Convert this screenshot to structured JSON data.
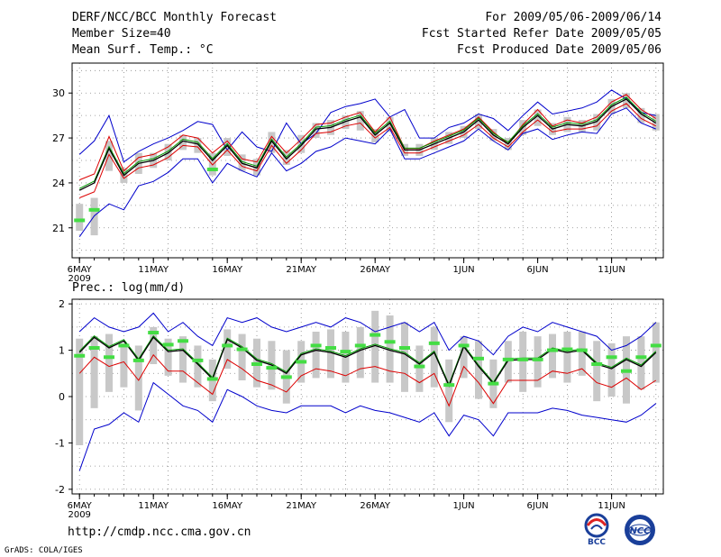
{
  "header": {
    "title": "DERF/NCC/BCC Monthly Forecast",
    "member_size": "Member Size=40",
    "variable": "Mean Surf. Temp.: °C",
    "valid_range": "For 2009/05/06-2009/06/14",
    "fcst_started": "Fcst Started Refer Date 2009/05/05",
    "fcst_produced": "Fcst Produced Date 2009/05/06"
  },
  "footer": {
    "url": "http://cmdp.ncc.cma.gov.cn",
    "grads": "GrADS: COLA/IGES",
    "logo1_text": "BCC",
    "logo2_text": "NCC"
  },
  "colors": {
    "envelope": "#0000cc",
    "spread": "#dd0000",
    "mean": "#000000",
    "median": "#009900",
    "box": "#c8c8c8",
    "marker": "#44dd44"
  },
  "chart_data": [
    {
      "type": "line",
      "title": "Mean Surf. Temp.: °C",
      "xlabel": "",
      "ylabel": "°C",
      "ylim": [
        19,
        32
      ],
      "yticks": [
        21,
        24,
        27,
        30
      ],
      "xtick_labels": [
        "6MAY",
        "11MAY",
        "16MAY",
        "21MAY",
        "26MAY",
        "1JUN",
        "6JUN",
        "11JUN"
      ],
      "xtick_positions": [
        0,
        5,
        10,
        15,
        20,
        26,
        31,
        36
      ],
      "year_label": "2009",
      "grid": true,
      "days": 40,
      "series": [
        {
          "name": "max",
          "values": [
            25.9,
            26.8,
            28.5,
            25.4,
            26.1,
            26.6,
            27.0,
            27.5,
            28.1,
            27.9,
            26.2,
            27.4,
            26.4,
            26.1,
            28.0,
            26.6,
            27.3,
            28.7,
            29.1,
            29.3,
            29.6,
            28.4,
            28.9,
            27.0,
            27.0,
            27.7,
            28.0,
            28.6,
            28.3,
            27.5,
            28.5,
            29.4,
            28.6,
            28.8,
            29.0,
            29.4,
            30.2,
            29.6,
            28.7,
            28.5
          ]
        },
        {
          "name": "upper",
          "values": [
            24.2,
            24.6,
            27.1,
            24.8,
            25.7,
            25.9,
            26.4,
            27.2,
            27.0,
            26.0,
            26.8,
            25.6,
            25.4,
            27.1,
            26.0,
            26.9,
            27.9,
            28.0,
            28.4,
            28.7,
            27.4,
            28.4,
            26.3,
            26.3,
            26.8,
            27.2,
            27.6,
            28.4,
            27.4,
            26.6,
            27.9,
            28.9,
            27.8,
            28.2,
            28.0,
            28.4,
            29.4,
            29.9,
            28.9,
            28.3
          ]
        },
        {
          "name": "mean",
          "values": [
            23.5,
            24.0,
            26.3,
            24.5,
            25.3,
            25.5,
            26.0,
            26.8,
            26.6,
            25.5,
            26.5,
            25.3,
            25.0,
            26.8,
            25.6,
            26.5,
            27.6,
            27.7,
            28.1,
            28.4,
            27.2,
            28.0,
            26.2,
            26.2,
            26.6,
            27.0,
            27.4,
            28.2,
            27.2,
            26.6,
            27.7,
            28.5,
            27.6,
            27.9,
            27.8,
            28.1,
            29.1,
            29.6,
            28.6,
            28.0
          ]
        },
        {
          "name": "lower",
          "values": [
            23.0,
            23.4,
            25.9,
            24.3,
            25.0,
            25.2,
            25.7,
            26.5,
            26.4,
            25.2,
            26.2,
            25.1,
            24.8,
            26.5,
            25.3,
            26.2,
            27.3,
            27.4,
            27.8,
            28.0,
            27.0,
            27.7,
            26.0,
            26.0,
            26.4,
            26.8,
            27.2,
            27.9,
            27.0,
            26.4,
            27.4,
            28.2,
            27.4,
            27.6,
            27.6,
            27.8,
            28.8,
            29.3,
            28.3,
            27.8
          ]
        },
        {
          "name": "min",
          "values": [
            20.4,
            21.8,
            22.6,
            22.2,
            23.8,
            24.1,
            24.7,
            25.6,
            25.6,
            24.0,
            25.3,
            24.8,
            24.4,
            26.0,
            24.8,
            25.3,
            26.1,
            26.4,
            27.0,
            26.8,
            26.6,
            27.6,
            25.6,
            25.6,
            26.0,
            26.4,
            26.8,
            27.6,
            26.8,
            26.2,
            27.3,
            27.6,
            26.9,
            27.2,
            27.4,
            27.3,
            28.6,
            29.0,
            28.0,
            27.6
          ]
        },
        {
          "name": "marker",
          "values": [
            21.5,
            22.2,
            null,
            null,
            null,
            null,
            null,
            null,
            null,
            24.9,
            null,
            null,
            null,
            null,
            null,
            null,
            null,
            null,
            null,
            null,
            null,
            null,
            null,
            null,
            null,
            null,
            null,
            null,
            null,
            null,
            null,
            null,
            null,
            null,
            null,
            null,
            null,
            null,
            null,
            null
          ]
        },
        {
          "name": "box_low",
          "values": [
            20.8,
            20.5,
            24.8,
            24.0,
            24.6,
            25.0,
            25.5,
            26.2,
            26.0,
            24.5,
            25.8,
            24.8,
            24.5,
            26.0,
            25.2,
            26.0,
            27.0,
            27.2,
            27.6,
            27.5,
            26.7,
            27.4,
            25.8,
            25.8,
            26.2,
            26.6,
            27.0,
            27.6,
            26.8,
            26.2,
            27.2,
            27.8,
            27.2,
            27.4,
            27.4,
            27.5,
            28.6,
            29.0,
            28.0,
            27.5
          ]
        },
        {
          "name": "box_high",
          "values": [
            22.6,
            23.0,
            26.8,
            25.0,
            26.0,
            26.0,
            26.6,
            27.2,
            27.0,
            26.0,
            27.0,
            25.9,
            25.6,
            27.4,
            26.2,
            27.2,
            28.0,
            28.2,
            28.5,
            28.8,
            27.6,
            28.4,
            26.6,
            26.6,
            27.0,
            27.4,
            27.8,
            28.6,
            27.6,
            27.0,
            28.2,
            28.9,
            28.0,
            28.4,
            28.2,
            28.6,
            29.6,
            30.0,
            29.0,
            28.6
          ]
        }
      ]
    },
    {
      "type": "line",
      "title": "Prec.: log(mm/d)",
      "xlabel": "",
      "ylabel": "log(mm/d)",
      "ylim": [
        -2.1,
        2.1
      ],
      "yticks": [
        -2,
        -1,
        0,
        1,
        2
      ],
      "xtick_labels": [
        "6MAY",
        "11MAY",
        "16MAY",
        "21MAY",
        "26MAY",
        "1JUN",
        "6JUN",
        "11JUN"
      ],
      "xtick_positions": [
        0,
        5,
        10,
        15,
        20,
        26,
        31,
        36
      ],
      "year_label": "2009",
      "grid": true,
      "days": 40,
      "series": [
        {
          "name": "max",
          "values": [
            1.4,
            1.7,
            1.5,
            1.4,
            1.5,
            1.8,
            1.4,
            1.6,
            1.3,
            1.1,
            1.7,
            1.6,
            1.7,
            1.5,
            1.4,
            1.5,
            1.6,
            1.5,
            1.7,
            1.6,
            1.4,
            1.5,
            1.6,
            1.4,
            1.6,
            1.0,
            1.3,
            1.2,
            0.9,
            1.3,
            1.5,
            1.4,
            1.6,
            1.5,
            1.4,
            1.3,
            1.0,
            1.1,
            1.3,
            1.6
          ]
        },
        {
          "name": "mean",
          "values": [
            0.95,
            1.28,
            1.05,
            1.2,
            0.78,
            1.28,
            0.97,
            1.0,
            0.7,
            0.38,
            1.23,
            1.05,
            0.78,
            0.68,
            0.5,
            0.9,
            1.0,
            0.95,
            0.85,
            1.0,
            1.1,
            1.0,
            0.92,
            0.7,
            0.95,
            0.23,
            1.08,
            0.65,
            0.28,
            0.78,
            0.8,
            0.8,
            1.02,
            0.95,
            1.0,
            0.7,
            0.6,
            0.8,
            0.65,
            0.95
          ]
        },
        {
          "name": "lower",
          "values": [
            0.5,
            0.85,
            0.65,
            0.75,
            0.35,
            0.9,
            0.55,
            0.55,
            0.3,
            0.05,
            0.8,
            0.6,
            0.35,
            0.25,
            0.1,
            0.45,
            0.6,
            0.55,
            0.45,
            0.6,
            0.65,
            0.55,
            0.5,
            0.3,
            0.5,
            -0.2,
            0.65,
            0.3,
            -0.15,
            0.35,
            0.35,
            0.35,
            0.55,
            0.5,
            0.6,
            0.3,
            0.2,
            0.4,
            0.15,
            0.35
          ]
        },
        {
          "name": "min",
          "values": [
            -1.6,
            -0.7,
            -0.6,
            -0.35,
            -0.55,
            0.3,
            0.05,
            -0.2,
            -0.3,
            -0.55,
            0.15,
            0.0,
            -0.2,
            -0.3,
            -0.35,
            -0.2,
            -0.2,
            -0.2,
            -0.35,
            -0.2,
            -0.3,
            -0.35,
            -0.45,
            -0.55,
            -0.35,
            -0.85,
            -0.4,
            -0.5,
            -0.85,
            -0.35,
            -0.35,
            -0.35,
            -0.25,
            -0.3,
            -0.4,
            -0.45,
            -0.5,
            -0.55,
            -0.4,
            -0.15
          ]
        },
        {
          "name": "marker",
          "values": [
            0.88,
            1.05,
            0.85,
            1.1,
            0.78,
            1.38,
            1.12,
            1.2,
            0.78,
            0.38,
            1.1,
            1.02,
            0.7,
            0.62,
            0.42,
            0.75,
            1.1,
            1.05,
            0.97,
            1.1,
            1.33,
            1.18,
            1.05,
            0.65,
            1.15,
            0.25,
            1.1,
            0.82,
            0.28,
            0.8,
            0.8,
            0.8,
            1.0,
            1.02,
            1.0,
            0.7,
            0.85,
            0.55,
            0.85,
            1.1
          ]
        },
        {
          "name": "box_low",
          "values": [
            -1.05,
            -0.25,
            0.1,
            0.2,
            -0.3,
            0.7,
            0.45,
            0.3,
            0.2,
            -0.1,
            0.6,
            0.35,
            0.2,
            0.15,
            -0.15,
            0.3,
            0.4,
            0.4,
            0.3,
            0.4,
            0.3,
            0.3,
            0.1,
            0.1,
            0.2,
            -0.55,
            0.4,
            -0.05,
            -0.25,
            0.3,
            0.1,
            0.2,
            0.4,
            0.3,
            0.45,
            -0.1,
            0.0,
            -0.15,
            0.15,
            0.3
          ]
        },
        {
          "name": "box_high",
          "values": [
            1.25,
            1.3,
            1.35,
            1.15,
            1.1,
            1.5,
            1.25,
            1.3,
            1.1,
            0.8,
            1.45,
            1.35,
            1.25,
            1.2,
            1.0,
            1.2,
            1.4,
            1.45,
            1.4,
            1.5,
            1.85,
            1.75,
            1.6,
            1.1,
            1.5,
            0.8,
            1.3,
            1.2,
            0.8,
            1.2,
            1.4,
            1.3,
            1.35,
            1.4,
            1.4,
            1.2,
            1.15,
            1.3,
            1.3,
            1.6
          ]
        }
      ]
    }
  ]
}
